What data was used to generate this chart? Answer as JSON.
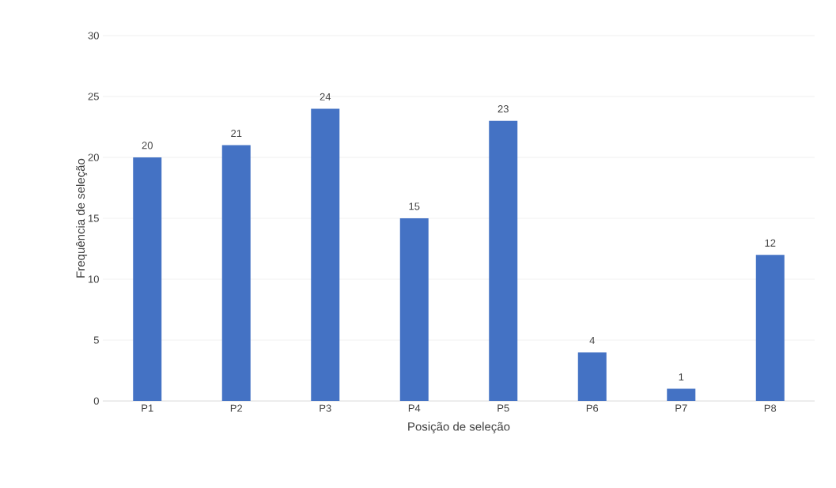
{
  "chart_data": {
    "type": "bar",
    "xlabel": "Posição de seleção",
    "ylabel": "Frequência de seleção",
    "categories": [
      "P1",
      "P2",
      "P3",
      "P4",
      "P5",
      "P6",
      "P7",
      "P8"
    ],
    "values": [
      20,
      21,
      24,
      15,
      23,
      4,
      1,
      12
    ],
    "color": "#4472c4",
    "ylim": [
      0,
      30
    ],
    "yticks": [
      0,
      5,
      10,
      15,
      20,
      25,
      30
    ],
    "grid": "y",
    "data_labels": true
  }
}
